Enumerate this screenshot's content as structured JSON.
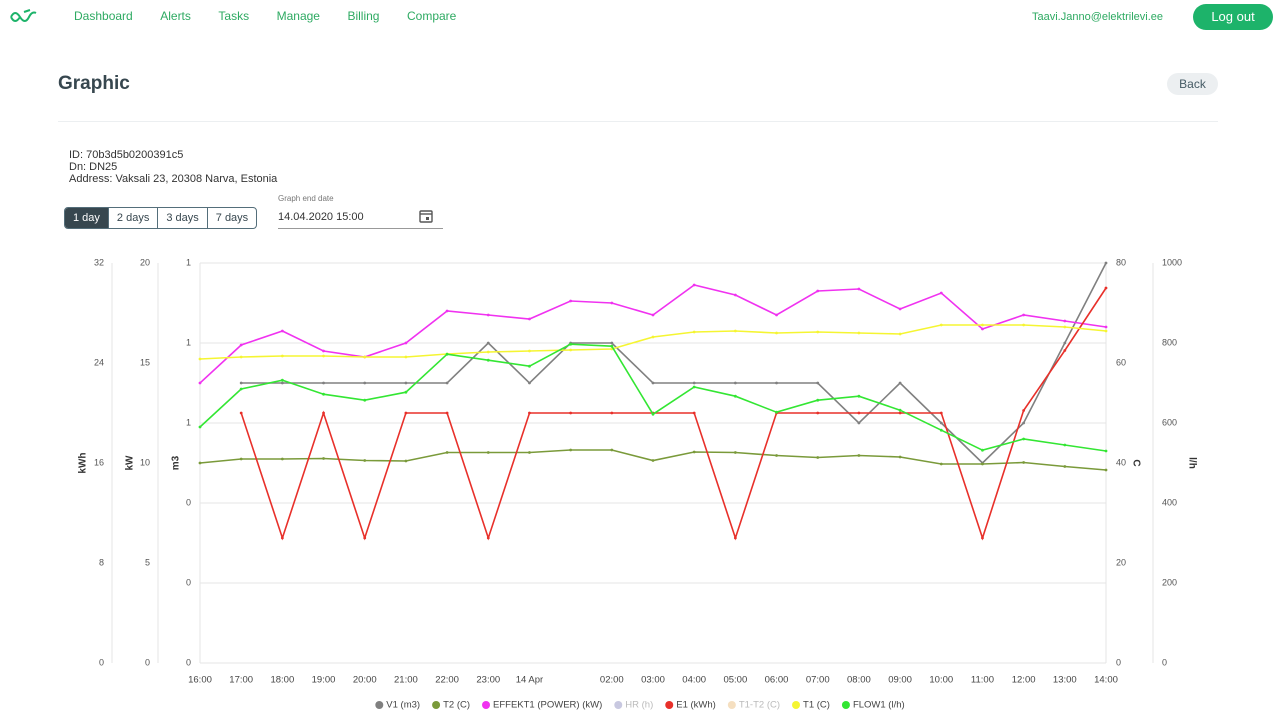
{
  "nav": {
    "links": [
      "Dashboard",
      "Alerts",
      "Tasks",
      "Manage",
      "Billing",
      "Compare"
    ],
    "user": "Taavi.Janno@elektrilevi.ee",
    "logout": "Log out"
  },
  "header": {
    "title": "Graphic",
    "back": "Back"
  },
  "info": [
    "ID: 70b3d5b0200391c5",
    "Dn: DN25",
    "Address: Vaksali 23, 20308 Narva, Estonia"
  ],
  "range_buttons": [
    "1 day",
    "2 days",
    "3 days",
    "7 days"
  ],
  "date_field": {
    "label": "Graph end date",
    "value": "14.04.2020 15:00"
  },
  "chart_data": {
    "type": "line",
    "categories": [
      "16:00",
      "17:00",
      "18:00",
      "19:00",
      "20:00",
      "21:00",
      "22:00",
      "23:00",
      "14 Apr",
      null,
      "02:00",
      "03:00",
      "04:00",
      "05:00",
      "06:00",
      "07:00",
      "08:00",
      "09:00",
      "10:00",
      "11:00",
      "12:00",
      "13:00",
      "14:00"
    ],
    "ylabel": "m3",
    "ylim": [
      0,
      1
    ],
    "yticks": [
      {
        "value": 0,
        "label": "0"
      },
      {
        "value": 0.2,
        "label": "0"
      },
      {
        "value": 0.4,
        "label": "0"
      },
      {
        "value": 0.6,
        "label": "1"
      },
      {
        "value": 0.8,
        "label": "1"
      },
      {
        "value": 1,
        "label": "1"
      }
    ],
    "y2label": "C",
    "y2lim": [
      0,
      80
    ],
    "y2ticks": [
      0,
      20,
      40,
      60,
      80
    ],
    "y3label": "kW",
    "y3lim": [
      0,
      20
    ],
    "y3ticks": [
      0,
      5,
      10,
      15,
      20
    ],
    "y4label": "kWh",
    "y4lim": [
      0,
      32
    ],
    "y4ticks": [
      0,
      8,
      16,
      24,
      32
    ],
    "y5label": "l/h",
    "y5lim": [
      0,
      1000
    ],
    "y5ticks": [
      0,
      200,
      400,
      600,
      800,
      1000
    ],
    "grid": true,
    "series": [
      {
        "name": "V1 (m3)",
        "color": "#808080",
        "axis": "y",
        "values": [
          null,
          0.7,
          0.7,
          0.7,
          0.7,
          0.7,
          0.7,
          0.8,
          0.7,
          0.8,
          0.8,
          0.7,
          0.7,
          0.7,
          0.7,
          0.7,
          0.6,
          0.7,
          0.6,
          0.5,
          0.6,
          0.8,
          1.0
        ]
      },
      {
        "name": "T2 (C)",
        "color": "#7a9a3a",
        "axis": "y2",
        "values": [
          40,
          40.8,
          40.8,
          40.9,
          40.5,
          40.4,
          42.1,
          42.1,
          42.1,
          42.6,
          42.6,
          40.5,
          42.2,
          42.1,
          41.5,
          41.1,
          41.5,
          41.2,
          39.8,
          39.8,
          40.1,
          39.3,
          38.6
        ]
      },
      {
        "name": "EFFEKT1 (POWER) (kW)",
        "color": "#f032f0",
        "axis": "y3",
        "values": [
          14,
          15.9,
          16.6,
          15.6,
          15.3,
          16,
          17.6,
          17.4,
          17.2,
          18.1,
          18,
          17.4,
          18.9,
          18.4,
          17.4,
          18.6,
          18.7,
          17.7,
          18.5,
          16.7,
          17.4,
          17.1,
          16.8
        ]
      },
      {
        "name": "HR (h)",
        "color": "#c8c8e0",
        "axis": "y",
        "values": [
          null,
          null,
          null,
          null,
          null,
          null,
          null,
          null,
          null,
          null,
          null,
          null,
          null,
          null,
          null,
          null,
          null,
          null,
          null,
          null,
          null,
          null,
          null
        ]
      },
      {
        "name": "E1 (kWh)",
        "color": "#e8302a",
        "axis": "y4",
        "values": [
          null,
          20,
          10,
          20,
          10,
          20,
          20,
          10,
          20,
          20,
          20,
          20,
          20,
          10,
          20,
          20,
          20,
          20,
          20,
          10,
          20.2,
          25,
          30
        ]
      },
      {
        "name": "T1-T2 (C)",
        "color": "#f5dfc0",
        "axis": "y2",
        "values": [
          null,
          null,
          null,
          null,
          null,
          null,
          null,
          null,
          null,
          null,
          null,
          null,
          null,
          null,
          null,
          null,
          null,
          null,
          null,
          null,
          null,
          null,
          null
        ]
      },
      {
        "name": "T1 (C)",
        "color": "#f5f532",
        "axis": "y2",
        "values": [
          60.8,
          61.2,
          61.4,
          61.4,
          61.2,
          61.2,
          61.8,
          62.2,
          62.4,
          62.6,
          62.8,
          65.2,
          66.2,
          66.4,
          66,
          66.2,
          66,
          65.8,
          67.6,
          67.6,
          67.6,
          67.2,
          66.4
        ]
      },
      {
        "name": "FLOW1 (l/h)",
        "color": "#33e633",
        "axis": "y5",
        "values": [
          590,
          685,
          707,
          672,
          657,
          677,
          772,
          757,
          742,
          797,
          792,
          622,
          690,
          667,
          627,
          657,
          667,
          632,
          582,
          532,
          560,
          545,
          530
        ]
      }
    ]
  }
}
